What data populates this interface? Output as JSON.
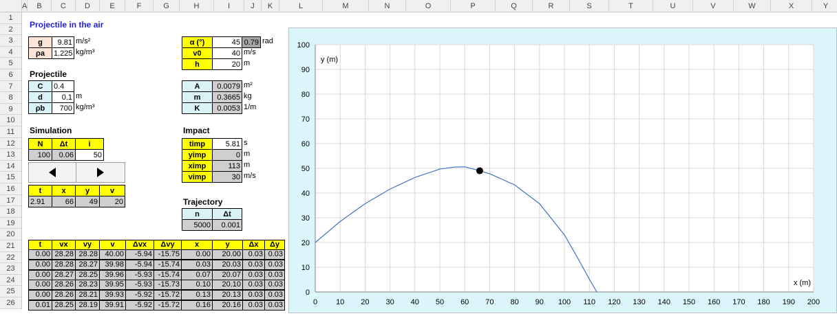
{
  "sheet": {
    "columns": [
      "A",
      "B",
      "C",
      "D",
      "E",
      "F",
      "G",
      "H",
      "I",
      "J",
      "K",
      "L",
      "M",
      "N",
      "O",
      "P",
      "Q",
      "R",
      "S",
      "T",
      "U",
      "V",
      "W",
      "X",
      "Y"
    ],
    "rows": [
      "1",
      "2",
      "3",
      "4",
      "5",
      "6",
      "7",
      "8",
      "9",
      "10",
      "11",
      "12",
      "13",
      "14",
      "15",
      "16",
      "17",
      "18",
      "19",
      "20",
      "21",
      "22",
      "23",
      "24",
      "25",
      "26"
    ]
  },
  "title": "Projectile in the air",
  "constants": {
    "g_label": "g",
    "g_value": "9.81",
    "g_unit": "m/s²",
    "rho_a_label": "ρa",
    "rho_a_value": "1.225",
    "rho_a_unit": "kg/m³"
  },
  "launch": {
    "alpha_label": "α (°)",
    "alpha_value": "45",
    "alpha_rad": "0.79",
    "alpha_unit": "rad",
    "v0_label": "v0",
    "v0_value": "40",
    "v0_unit": "m/s",
    "h_label": "h",
    "h_value": "20",
    "h_unit": "m"
  },
  "projectile": {
    "heading": "Projectile",
    "C_label": "C",
    "C_value": "0.4",
    "d_label": "d",
    "d_value": "0.1",
    "d_unit": "m",
    "rho_b_label": "ρb",
    "rho_b_value": "700",
    "rho_b_unit": "kg/m³"
  },
  "derived": {
    "A_label": "A",
    "A_value": "0.0079",
    "A_unit": "m²",
    "m_label": "m",
    "m_value": "0.3665",
    "m_unit": "kg",
    "K_label": "K",
    "K_value": "0.0053",
    "K_unit": "1/m"
  },
  "simulation": {
    "heading": "Simulation",
    "headers": [
      "N",
      "Δt",
      "i"
    ],
    "values": [
      "100",
      "0.06",
      "50"
    ],
    "state_headers": [
      "t",
      "x",
      "y",
      "v"
    ],
    "state_values": [
      "2.91",
      "66",
      "49",
      "20"
    ]
  },
  "impact": {
    "heading": "Impact",
    "t_label": "timp",
    "t_value": "5.81",
    "t_unit": "s",
    "y_label": "yimp",
    "y_value": "0",
    "y_unit": "m",
    "x_label": "ximp",
    "x_value": "113",
    "x_unit": "m",
    "v_label": "vimp",
    "v_value": "30",
    "v_unit": "m/s"
  },
  "trajectory": {
    "heading": "Trajectory",
    "headers": [
      "n",
      "Δt"
    ],
    "values": [
      "5000",
      "0.001"
    ]
  },
  "table": {
    "headers": [
      "t",
      "vx",
      "vy",
      "v",
      "Δvx",
      "Δvy",
      "x",
      "y",
      "Δx",
      "Δy"
    ],
    "rows": [
      [
        "0.00",
        "28.28",
        "28.28",
        "40.00",
        "-5.94",
        "-15.75",
        "0.00",
        "20.00",
        "0.03",
        "0.03"
      ],
      [
        "0.00",
        "28.28",
        "28.27",
        "39.98",
        "-5.94",
        "-15.74",
        "0.03",
        "20.03",
        "0.03",
        "0.03"
      ],
      [
        "0.00",
        "28.27",
        "28.25",
        "39.96",
        "-5.93",
        "-15.74",
        "0.07",
        "20.07",
        "0.03",
        "0.03"
      ],
      [
        "0.00",
        "28.26",
        "28.23",
        "39.95",
        "-5.93",
        "-15.73",
        "0.10",
        "20.10",
        "0.03",
        "0.03"
      ],
      [
        "0.00",
        "28.26",
        "28.21",
        "39.93",
        "-5.92",
        "-15.72",
        "0.13",
        "20.13",
        "0.03",
        "0.03"
      ],
      [
        "0.01",
        "28.25",
        "28.19",
        "39.91",
        "-5.92",
        "-15.72",
        "0.16",
        "20.16",
        "0.03",
        "0.03"
      ]
    ]
  },
  "chart_data": {
    "type": "scatter",
    "xlabel": "x (m)",
    "ylabel": "y (m)",
    "xlim": [
      0,
      200
    ],
    "ylim": [
      0,
      100
    ],
    "xticks": [
      "0",
      "10",
      "20",
      "30",
      "40",
      "50",
      "60",
      "70",
      "80",
      "90",
      "100",
      "110",
      "120",
      "130",
      "140",
      "150",
      "160",
      "170",
      "180",
      "190",
      "200"
    ],
    "yticks": [
      "0",
      "10",
      "20",
      "30",
      "40",
      "50",
      "60",
      "70",
      "80",
      "90",
      "100"
    ],
    "grid": true,
    "series": [
      {
        "style": "line",
        "color": "#4472c4",
        "x": [
          0,
          10,
          20,
          30,
          40,
          50,
          56,
          60,
          66,
          70,
          80,
          90,
          100,
          105,
          110,
          113
        ],
        "y": [
          20,
          28.5,
          35.7,
          41.6,
          46.3,
          49.7,
          50.5,
          50.6,
          49,
          47.8,
          43.3,
          35.7,
          23.1,
          14.3,
          5.2,
          0
        ]
      },
      {
        "style": "marker",
        "color": "#000000",
        "x": [
          66
        ],
        "y": [
          49
        ]
      }
    ],
    "colors": {
      "plot_bg": "#ffffff",
      "chart_bg": "#daf3f7"
    }
  }
}
